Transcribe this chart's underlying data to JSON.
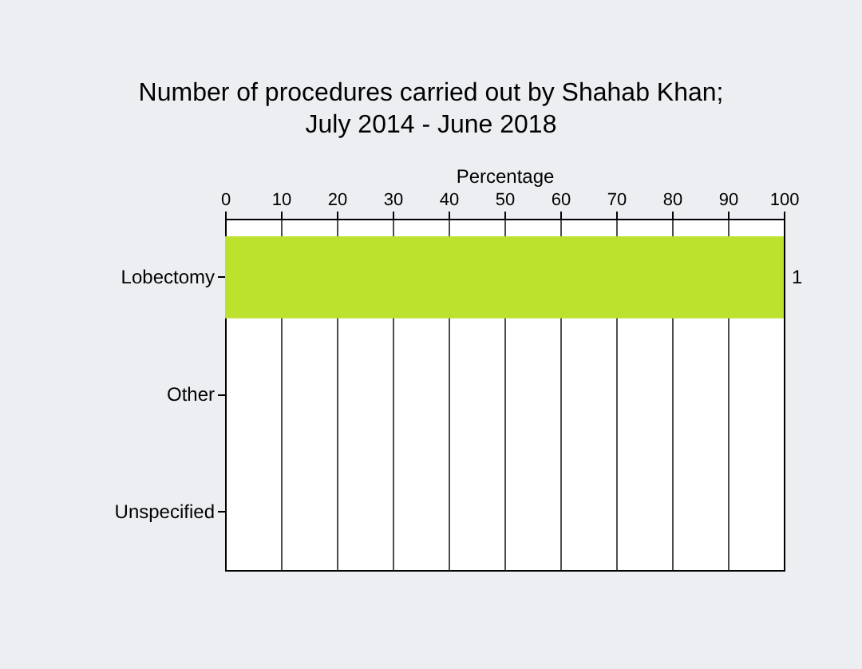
{
  "chart_data": {
    "type": "bar",
    "orientation": "horizontal",
    "title": "Number of procedures carried out by Shahab Khan;\nJuly 2014 - June 2018",
    "xlabel": "Percentage",
    "categories": [
      "Lobectomy",
      "Other",
      "Unspecified"
    ],
    "values": [
      100,
      0,
      0
    ],
    "annotations": [
      {
        "text": "1",
        "x": 100,
        "y": "Lobectomy"
      }
    ],
    "color": "#bde22e",
    "xlim": [
      0,
      100
    ],
    "xticks": [
      0,
      10,
      20,
      30,
      40,
      50,
      60,
      70,
      80,
      90,
      100
    ],
    "grid": "x"
  }
}
